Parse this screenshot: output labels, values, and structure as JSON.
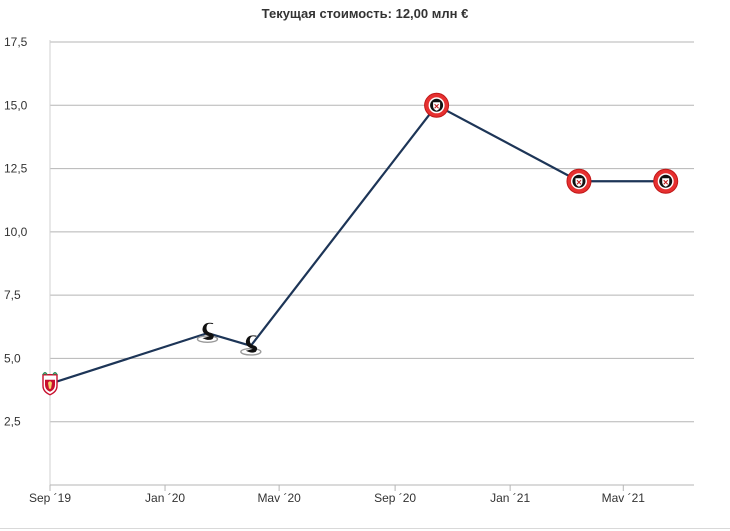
{
  "chart_data": {
    "type": "line",
    "title": "Текущая стоимость: 12,00 млн €",
    "xlabel": "",
    "ylabel": "",
    "ylim": [
      0,
      17.5
    ],
    "yticks": [
      2.5,
      5.0,
      7.5,
      10.0,
      12.5,
      15.0,
      17.5
    ],
    "ytick_labels": [
      "2,5",
      "5,0",
      "7,5",
      "10,0",
      "12,5",
      "15,0",
      "17,5"
    ],
    "xlim": [
      "2019-09-01",
      "2021-07-15"
    ],
    "xticks": [
      "2019-09-01",
      "2020-01-01",
      "2020-05-01",
      "2020-09-01",
      "2021-01-01",
      "2021-05-01"
    ],
    "xtick_labels": [
      "Sep ´19",
      "Jan ´20",
      "Mav ´20",
      "Sep ´20",
      "Jan ´21",
      "Mav ´21"
    ],
    "grid": true,
    "line_color": "#1d3557",
    "series": [
      {
        "points": [
          {
            "x": "2019-09-01",
            "y": 4.0,
            "marker": "liverpool-crest"
          },
          {
            "x": "2020-02-15",
            "y": 6.0,
            "marker": "swan-crest"
          },
          {
            "x": "2020-04-01",
            "y": 5.5,
            "marker": "swan-crest"
          },
          {
            "x": "2020-10-15",
            "y": 15.0,
            "marker": "blades-crest"
          },
          {
            "x": "2021-03-15",
            "y": 12.0,
            "marker": "blades-crest"
          },
          {
            "x": "2021-06-15",
            "y": 12.0,
            "marker": "blades-crest"
          }
        ]
      }
    ]
  }
}
